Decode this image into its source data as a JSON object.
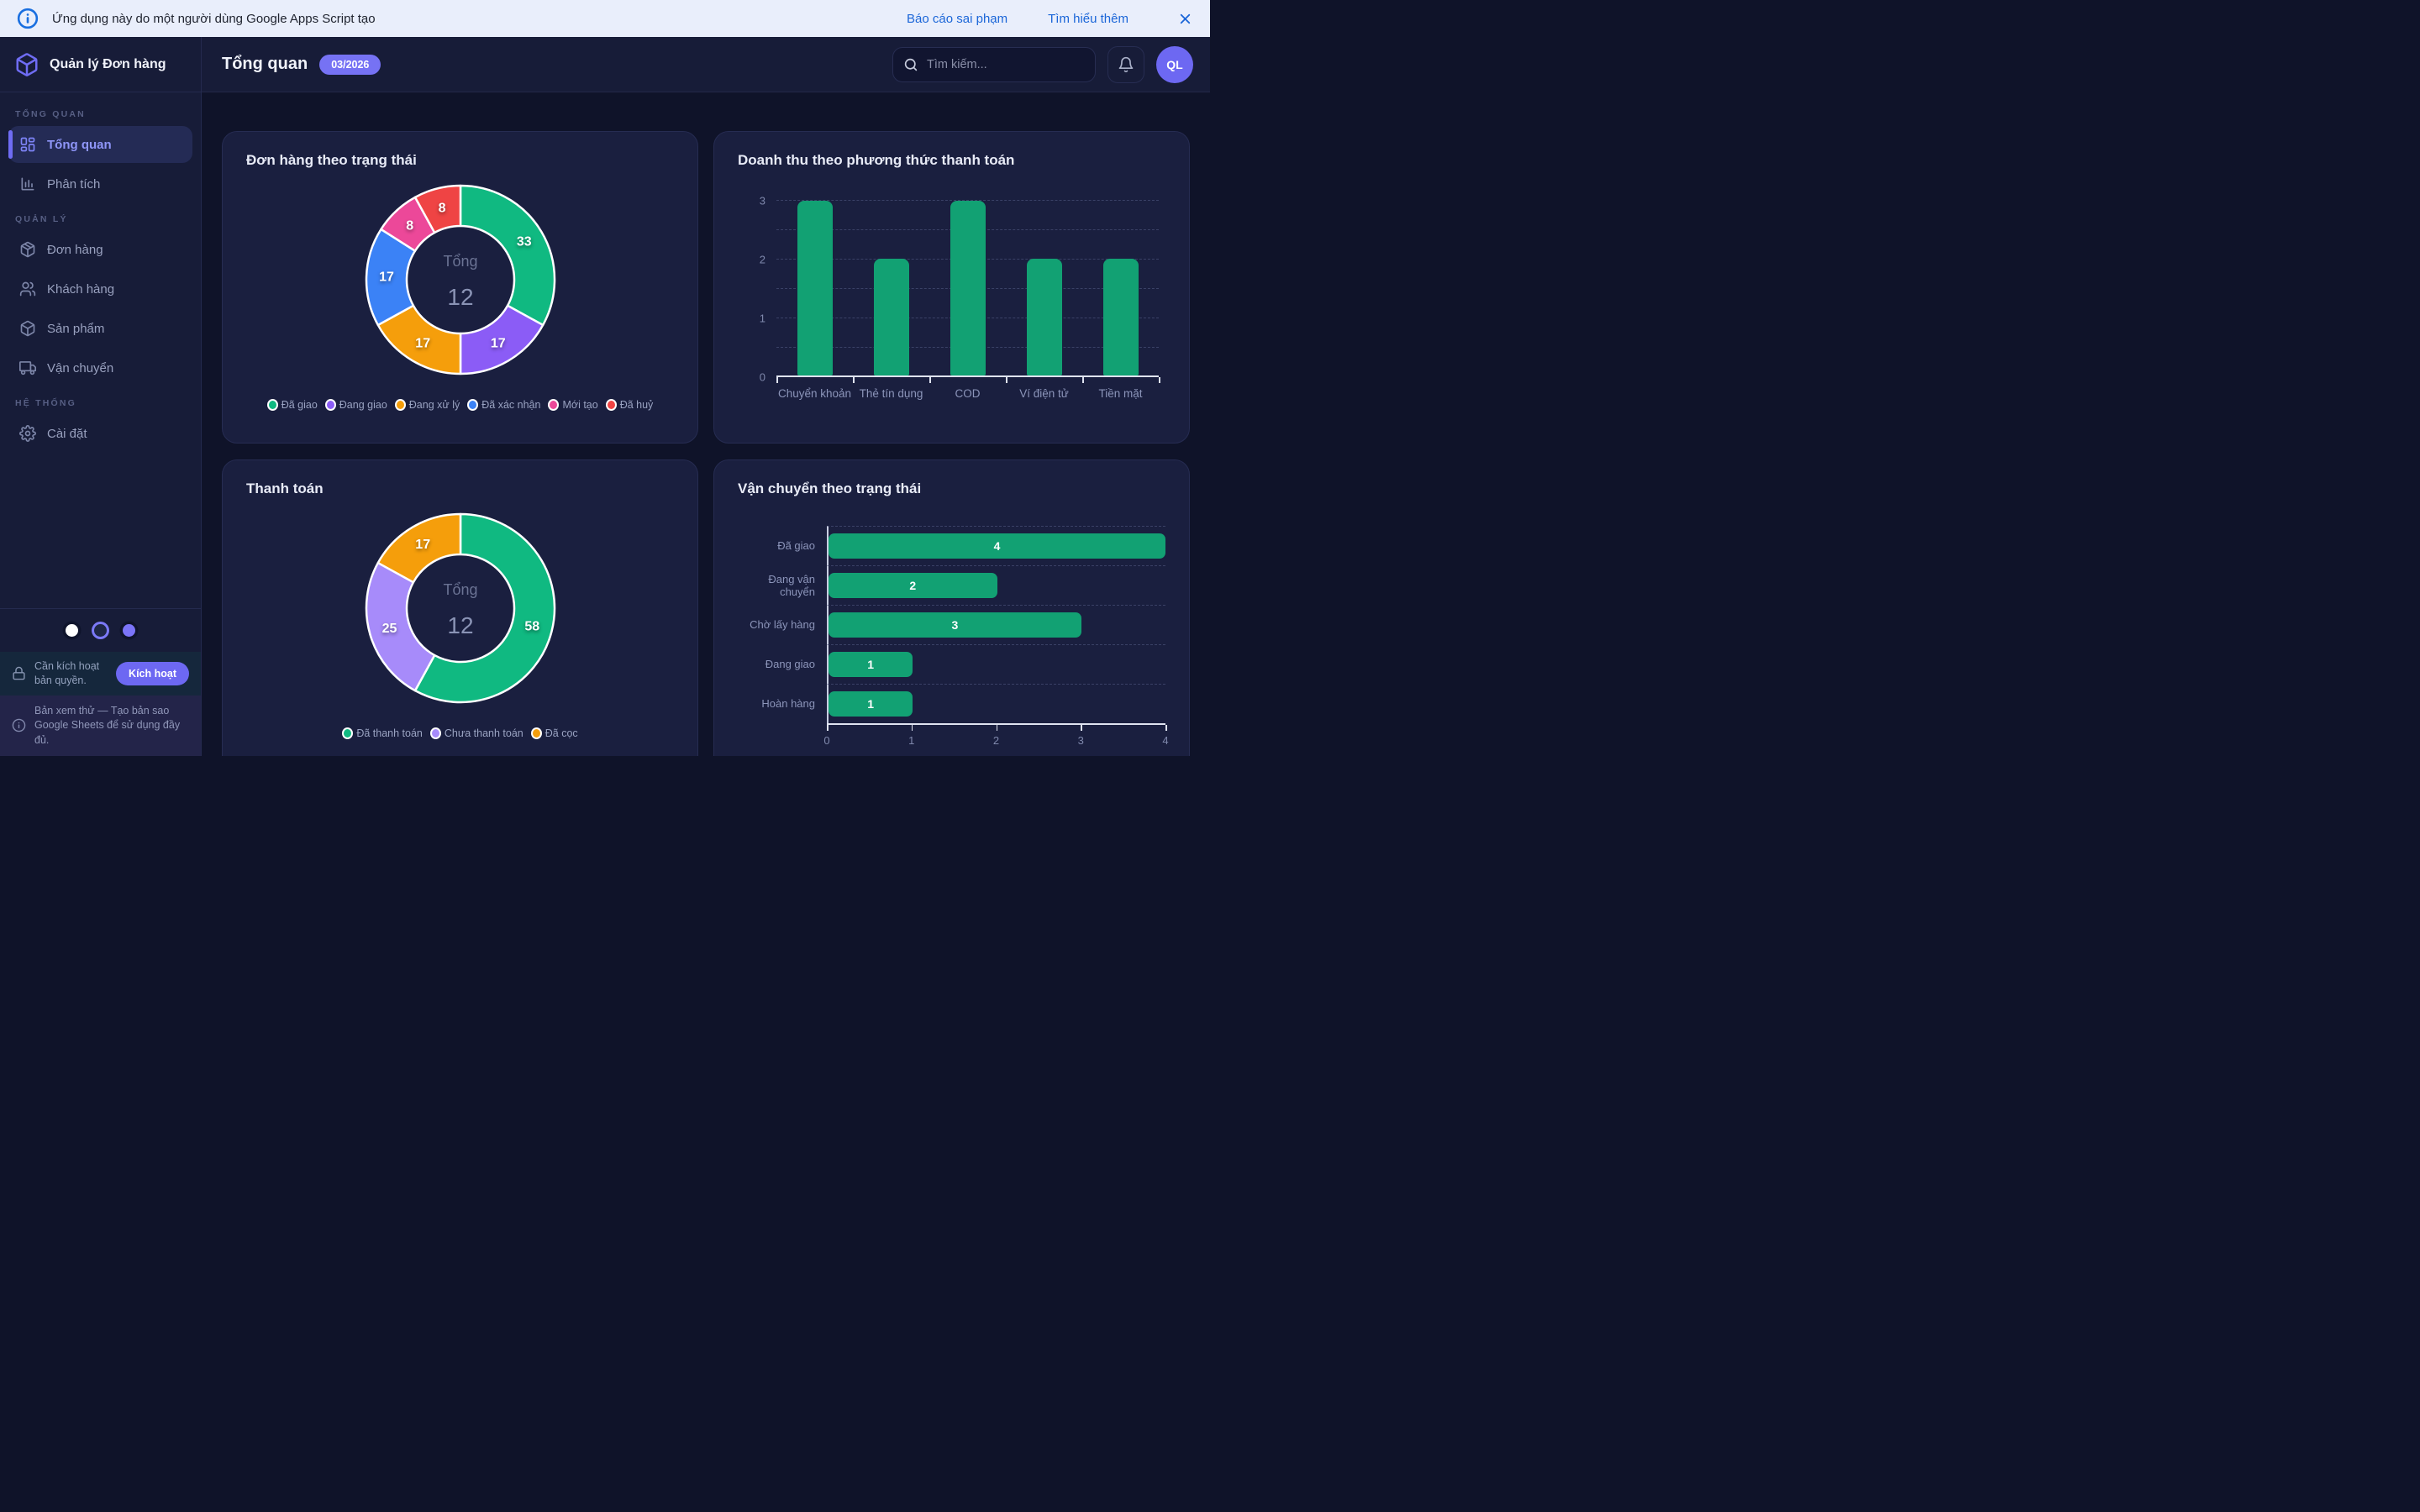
{
  "banner": {
    "text": "Ứng dụng này do một người dùng Google Apps Script tạo",
    "report_link": "Báo cáo sai phạm",
    "learn_link": "Tìm hiểu thêm"
  },
  "sidebar": {
    "app_title": "Quản lý Đơn hàng",
    "sections": [
      {
        "label": "TỔNG QUAN",
        "items": [
          {
            "label": "Tổng quan",
            "icon": "grid",
            "active": true
          },
          {
            "label": "Phân tích",
            "icon": "bar-chart",
            "active": false
          }
        ]
      },
      {
        "label": "QUẢN LÝ",
        "items": [
          {
            "label": "Đơn hàng",
            "icon": "package",
            "active": false
          },
          {
            "label": "Khách hàng",
            "icon": "users",
            "active": false
          },
          {
            "label": "Sản phẩm",
            "icon": "box",
            "active": false
          },
          {
            "label": "Vận chuyển",
            "icon": "truck",
            "active": false
          }
        ]
      },
      {
        "label": "HỆ THỐNG",
        "items": [
          {
            "label": "Cài đặt",
            "icon": "gear",
            "active": false
          }
        ]
      }
    ],
    "theme_dots": [
      {
        "color": "#ffffff",
        "selected": false
      },
      {
        "color": "#1e2746",
        "selected": true
      },
      {
        "color": "#7b74f8",
        "selected": false
      }
    ],
    "license_notice": {
      "text": "Cần kích hoạt bản quyền.",
      "button_label": "Kích hoạt"
    },
    "trial_notice": {
      "text": "Bản xem thử — Tạo bản sao Google Sheets để sử dụng đầy đủ."
    }
  },
  "header": {
    "title": "Tổng quan",
    "badge": "03/2026",
    "search_placeholder": "Tìm kiếm...",
    "avatar_initials": "QL"
  },
  "chart_data": [
    {
      "type": "donut",
      "title": "Đơn hàng theo trạng thái",
      "center_label": "Tổng",
      "center_value": "12",
      "legend_position": "bottom",
      "segments": [
        {
          "label": "Đã giao",
          "value": 33,
          "color": "#10b981"
        },
        {
          "label": "Đang giao",
          "value": 17,
          "color": "#8b5cf6"
        },
        {
          "label": "Đang xử lý",
          "value": 17,
          "color": "#f59e0b"
        },
        {
          "label": "Đã xác nhận",
          "value": 17,
          "color": "#3b82f6"
        },
        {
          "label": "Mới tạo",
          "value": 8,
          "color": "#ec4899"
        },
        {
          "label": "Đã huỷ",
          "value": 8,
          "color": "#ef4444"
        }
      ]
    },
    {
      "type": "bar",
      "title": "Doanh thu theo phương thức thanh toán",
      "categories": [
        "Chuyển khoản",
        "Thẻ tín dụng",
        "COD",
        "Ví điện tử",
        "Tiền mặt"
      ],
      "values": [
        3,
        2,
        3,
        2,
        2
      ],
      "bar_color": "#12a173",
      "ylim": [
        0,
        3
      ],
      "yticks": [
        0,
        1,
        2,
        3
      ],
      "grid_step": 0.5,
      "grid": "dashed"
    },
    {
      "type": "donut",
      "title": "Thanh toán",
      "center_label": "Tổng",
      "center_value": "12",
      "legend_position": "bottom",
      "segments": [
        {
          "label": "Đã thanh toán",
          "value": 58,
          "color": "#10b981"
        },
        {
          "label": "Chưa thanh toán",
          "value": 25,
          "color": "#a78bfa"
        },
        {
          "label": "Đã cọc",
          "value": 17,
          "color": "#f59e0b"
        }
      ]
    },
    {
      "type": "hbar",
      "title": "Vận chuyển theo trạng thái",
      "categories": [
        "Đã giao",
        "Đang vận chuyển",
        "Chờ lấy hàng",
        "Đang giao",
        "Hoàn hàng"
      ],
      "values": [
        4,
        2,
        3,
        1,
        1
      ],
      "bar_color": "#12a173",
      "xlim": [
        0,
        4
      ],
      "xticks": [
        0,
        1,
        2,
        3,
        4
      ],
      "grid": "dashed"
    }
  ]
}
